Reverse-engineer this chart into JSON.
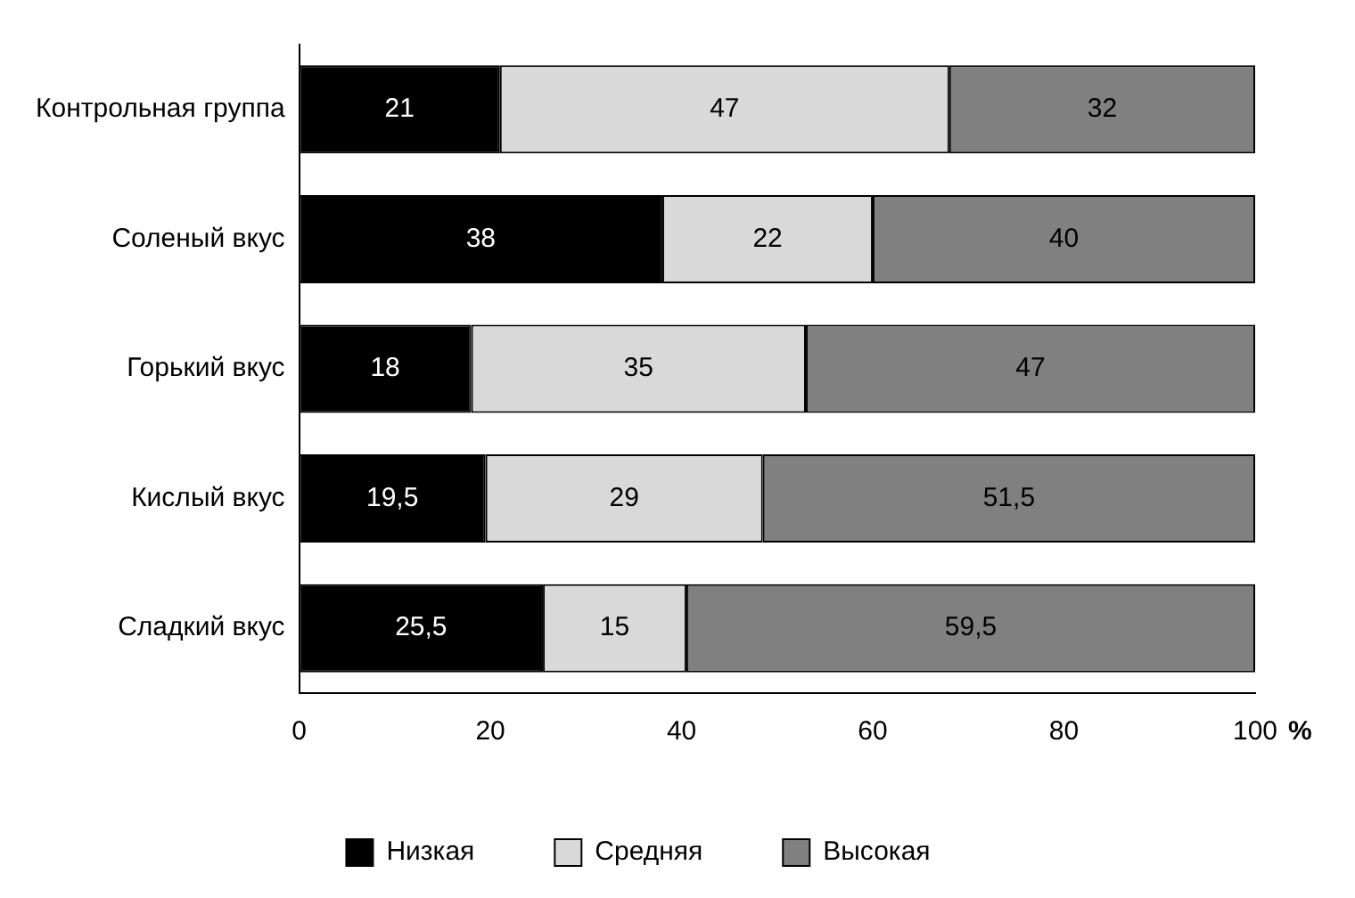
{
  "chart_data": {
    "type": "bar",
    "orientation": "horizontal",
    "stacked": true,
    "xlabel": "%",
    "categories": [
      "Контрольная группа",
      "Соленый вкус",
      "Горький вкус",
      "Кислый вкус",
      "Сладкий вкус"
    ],
    "series": [
      {
        "name": "Низкая",
        "color": "#000000",
        "values": [
          21,
          38,
          18,
          19.5,
          25.5
        ],
        "value_labels": [
          "21",
          "38",
          "18",
          "19,5",
          "25,5"
        ]
      },
      {
        "name": "Средняя",
        "color": "#d9d9d9",
        "values": [
          47,
          22,
          35,
          29,
          15
        ],
        "value_labels": [
          "47",
          "22",
          "35",
          "29",
          "15"
        ]
      },
      {
        "name": "Высокая",
        "color": "#808080",
        "values": [
          32,
          40,
          47,
          51.5,
          59.5
        ],
        "value_labels": [
          "32",
          "40",
          "47",
          "51,5",
          "59,5"
        ]
      }
    ],
    "xlim": [
      0,
      100
    ],
    "xticks": [
      0,
      20,
      40,
      60,
      80,
      100
    ],
    "grid": false,
    "legend": "bottom"
  }
}
